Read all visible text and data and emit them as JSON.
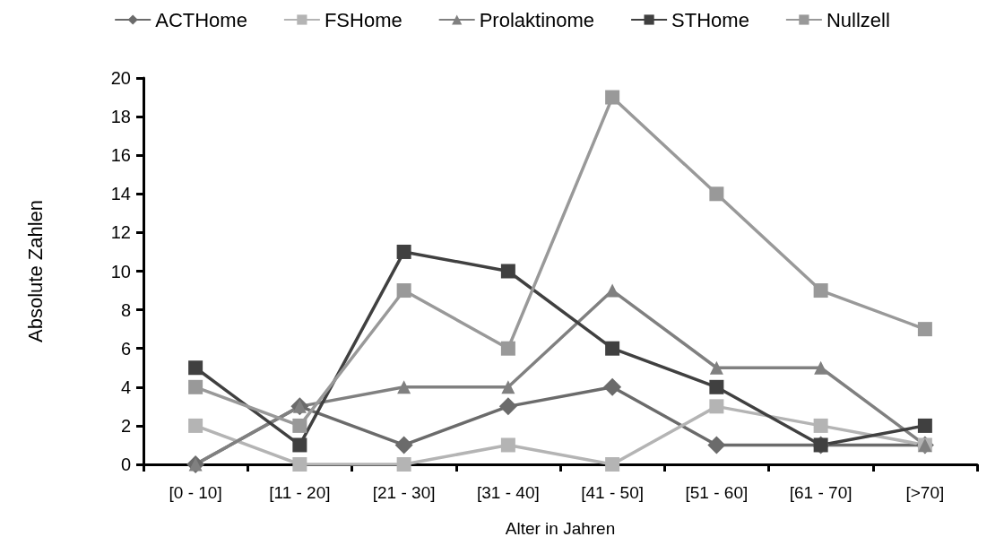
{
  "chart_data": {
    "type": "line",
    "xlabel": "Alter in Jahren",
    "ylabel": "Absolute Zahlen",
    "categories": [
      "[0 - 10]",
      "[11 - 20]",
      "[21 - 30]",
      "[31 - 40]",
      "[41 - 50]",
      "[51 - 60]",
      "[61 - 70]",
      "[>70]"
    ],
    "series": [
      {
        "name": "ACTHome",
        "color": "#6b6b6b",
        "marker": "diamond",
        "values": [
          0,
          3,
          1,
          3,
          4,
          1,
          1,
          1
        ]
      },
      {
        "name": "FSHome",
        "color": "#b4b4b4",
        "marker": "square",
        "values": [
          2,
          0,
          0,
          1,
          0,
          3,
          2,
          1
        ]
      },
      {
        "name": "Prolaktinome",
        "color": "#808080",
        "marker": "triangle",
        "values": [
          0,
          3,
          4,
          4,
          9,
          5,
          5,
          1
        ]
      },
      {
        "name": "STHome",
        "color": "#404040",
        "marker": "square",
        "values": [
          5,
          1,
          11,
          10,
          6,
          4,
          1,
          2
        ]
      },
      {
        "name": "Nullzell",
        "color": "#999999",
        "marker": "square",
        "values": [
          4,
          2,
          9,
          6,
          19,
          14,
          9,
          7
        ]
      }
    ],
    "ylim": [
      0,
      20
    ],
    "yticks": [
      0,
      2,
      4,
      6,
      8,
      10,
      12,
      14,
      16,
      18,
      20
    ],
    "grid": false,
    "legend": "top",
    "line_style": "solid"
  }
}
